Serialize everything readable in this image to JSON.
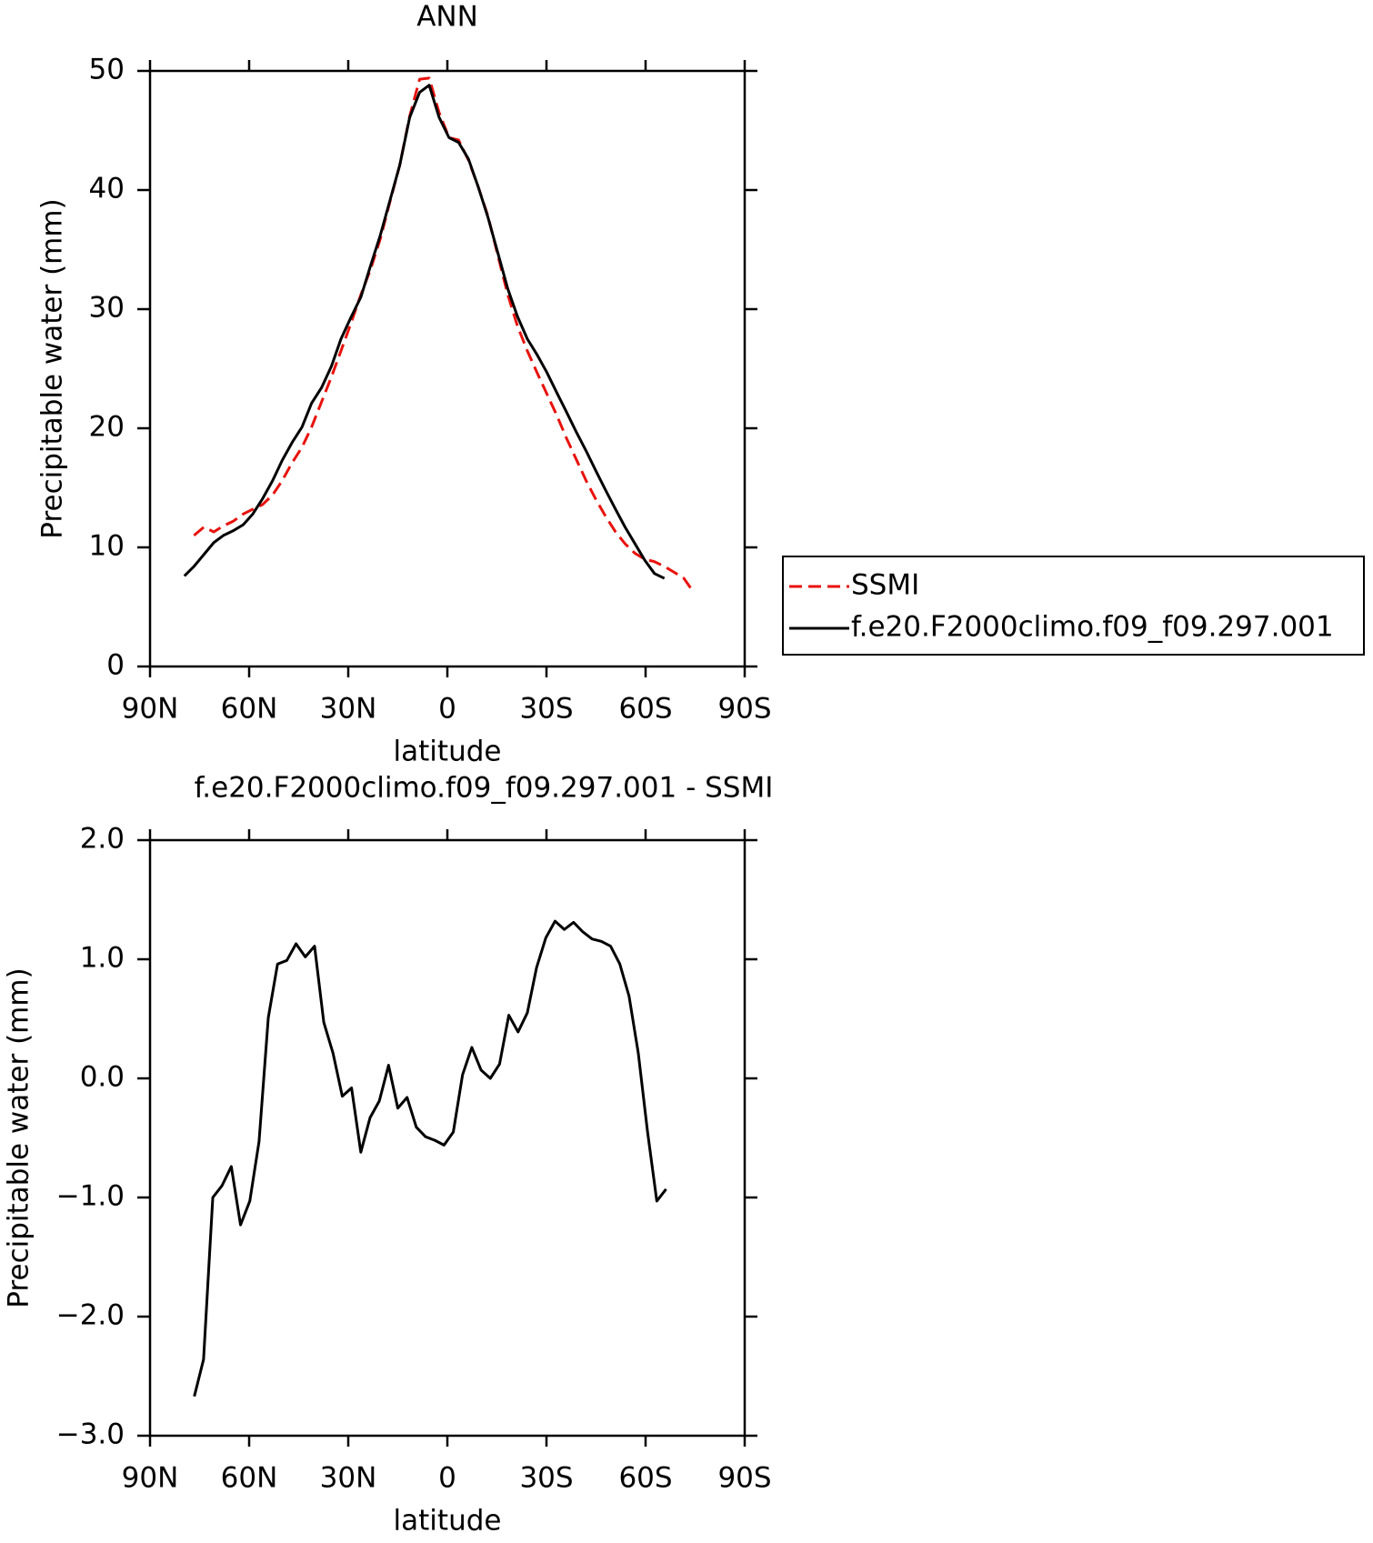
{
  "chart_data": [
    {
      "type": "line",
      "title": "ANN",
      "xlabel": "latitude",
      "ylabel": "Precipitable water (mm)",
      "xlim": [
        90,
        -90
      ],
      "xticks": [
        {
          "value": 90,
          "label": "90N"
        },
        {
          "value": 60,
          "label": "60N"
        },
        {
          "value": 30,
          "label": "30N"
        },
        0,
        {
          "value": -30,
          "label": "30S"
        },
        {
          "value": -60,
          "label": "60S"
        },
        {
          "value": -90,
          "label": "90S"
        }
      ],
      "ylim": [
        0,
        50
      ],
      "yticks": [
        0,
        10,
        20,
        30,
        40,
        50
      ],
      "legend": "outside-right",
      "series": [
        {
          "name": "SSMI",
          "color": "#e8120c",
          "linestyle": "dashed",
          "x": [
            76.7,
            73.7,
            70.7,
            67.8,
            64.8,
            61.8,
            58.9,
            55.9,
            52.9,
            50.0,
            47.0,
            44.0,
            41.1,
            38.1,
            35.1,
            32.2,
            29.2,
            26.2,
            23.3,
            20.3,
            17.3,
            14.4,
            11.4,
            8.4,
            5.5,
            2.5,
            -0.5,
            -3.4,
            -6.4,
            -9.3,
            -12.3,
            -15.3,
            -18.3,
            -21.2,
            -24.2,
            -27.1,
            -30.1,
            -33.1,
            -36.0,
            -39.0,
            -42.0,
            -45.0,
            -47.9,
            -50.9,
            -53.8,
            -56.8,
            -59.8,
            -62.7,
            -65.7,
            -68.7,
            -71.6,
            -74.6
          ],
          "values": [
            11.0,
            11.7,
            11.3,
            11.8,
            12.2,
            12.8,
            13.2,
            13.6,
            14.4,
            15.6,
            17.1,
            18.4,
            20.1,
            22.2,
            24.3,
            26.5,
            28.8,
            31.2,
            33.3,
            35.9,
            39.1,
            42.1,
            46.2,
            49.3,
            49.4,
            46.5,
            44.4,
            44.2,
            42.5,
            40.3,
            37.8,
            34.5,
            31.2,
            28.6,
            26.5,
            24.7,
            22.9,
            21.1,
            19.2,
            17.4,
            15.6,
            14.0,
            12.6,
            11.3,
            10.3,
            9.5,
            9.0,
            8.8,
            8.4,
            7.9,
            7.4,
            6.2
          ]
        },
        {
          "name": "f.e20.F2000climo.f09_f09.297.001",
          "color": "#000000",
          "linestyle": "solid",
          "x": [
            79.6,
            76.7,
            73.7,
            70.7,
            67.8,
            64.8,
            61.8,
            58.9,
            55.9,
            52.9,
            50.0,
            47.0,
            44.0,
            41.1,
            38.1,
            35.1,
            32.2,
            29.2,
            26.2,
            23.3,
            20.3,
            17.3,
            14.4,
            11.4,
            8.4,
            5.5,
            2.5,
            -0.5,
            -3.4,
            -6.4,
            -9.3,
            -12.3,
            -15.3,
            -18.3,
            -21.2,
            -24.2,
            -27.1,
            -30.1,
            -33.1,
            -36.0,
            -39.0,
            -42.0,
            -45.0,
            -47.9,
            -50.9,
            -53.8,
            -56.8,
            -59.8,
            -62.7,
            -65.7
          ],
          "values": [
            7.6,
            8.4,
            9.4,
            10.4,
            11.0,
            11.4,
            11.9,
            12.8,
            14.1,
            15.6,
            17.3,
            18.8,
            20.1,
            22.1,
            23.4,
            25.2,
            27.5,
            29.3,
            31.0,
            33.6,
            36.2,
            39.2,
            42.1,
            46.1,
            48.2,
            48.8,
            46.1,
            44.4,
            44.0,
            42.6,
            40.3,
            37.7,
            34.7,
            31.7,
            29.4,
            27.5,
            26.2,
            24.7,
            23.0,
            21.4,
            19.7,
            18.1,
            16.4,
            14.8,
            13.2,
            11.7,
            10.3,
            8.9,
            7.8,
            7.4
          ]
        }
      ]
    },
    {
      "type": "line",
      "title": "f.e20.F2000climo.f09_f09.297.001 - SSMI",
      "xlabel": "latitude",
      "ylabel": "Precipitable water (mm)",
      "xlim": [
        90,
        -90
      ],
      "xticks": [
        {
          "value": 90,
          "label": "90N"
        },
        {
          "value": 60,
          "label": "60N"
        },
        {
          "value": 30,
          "label": "30N"
        },
        0,
        {
          "value": -30,
          "label": "30S"
        },
        {
          "value": -60,
          "label": "60S"
        },
        {
          "value": -90,
          "label": "90S"
        }
      ],
      "ylim": [
        -3,
        2
      ],
      "yticks": [
        {
          "value": -3,
          "label": "−3.0"
        },
        {
          "value": -2,
          "label": "−2.0"
        },
        {
          "value": -1,
          "label": "−1.0"
        },
        {
          "value": 0,
          "label": "0.0"
        },
        {
          "value": 1,
          "label": "1.0"
        },
        {
          "value": 2,
          "label": "2.0"
        }
      ],
      "series": [
        {
          "color": "#000000",
          "linestyle": "solid",
          "x": [
            76.6,
            73.8,
            71.0,
            68.2,
            65.4,
            62.6,
            59.8,
            57.0,
            54.2,
            51.4,
            48.6,
            45.8,
            43.0,
            40.2,
            37.4,
            34.6,
            31.8,
            29.0,
            26.2,
            23.4,
            20.6,
            17.8,
            15.0,
            12.2,
            9.4,
            6.6,
            3.8,
            1.0,
            -1.8,
            -4.6,
            -7.4,
            -10.2,
            -13.0,
            -15.8,
            -18.6,
            -21.4,
            -24.2,
            -27.0,
            -29.8,
            -32.6,
            -35.4,
            -38.2,
            -41.0,
            -43.8,
            -46.6,
            -49.4,
            -52.2,
            -55.0,
            -57.8,
            -60.6,
            -63.4,
            -66.2
          ],
          "values": [
            -2.67,
            -2.36,
            -1.0,
            -0.9,
            -0.74,
            -1.23,
            -1.03,
            -0.53,
            0.51,
            0.96,
            0.99,
            1.13,
            1.02,
            1.11,
            0.47,
            0.21,
            -0.15,
            -0.08,
            -0.62,
            -0.33,
            -0.19,
            0.11,
            -0.25,
            -0.16,
            -0.41,
            -0.49,
            -0.52,
            -0.56,
            -0.45,
            0.03,
            0.26,
            0.07,
            0.0,
            0.12,
            0.53,
            0.39,
            0.55,
            0.93,
            1.18,
            1.32,
            1.25,
            1.31,
            1.23,
            1.17,
            1.15,
            1.11,
            0.96,
            0.69,
            0.21,
            -0.45,
            -1.03,
            -0.93
          ]
        }
      ]
    }
  ]
}
